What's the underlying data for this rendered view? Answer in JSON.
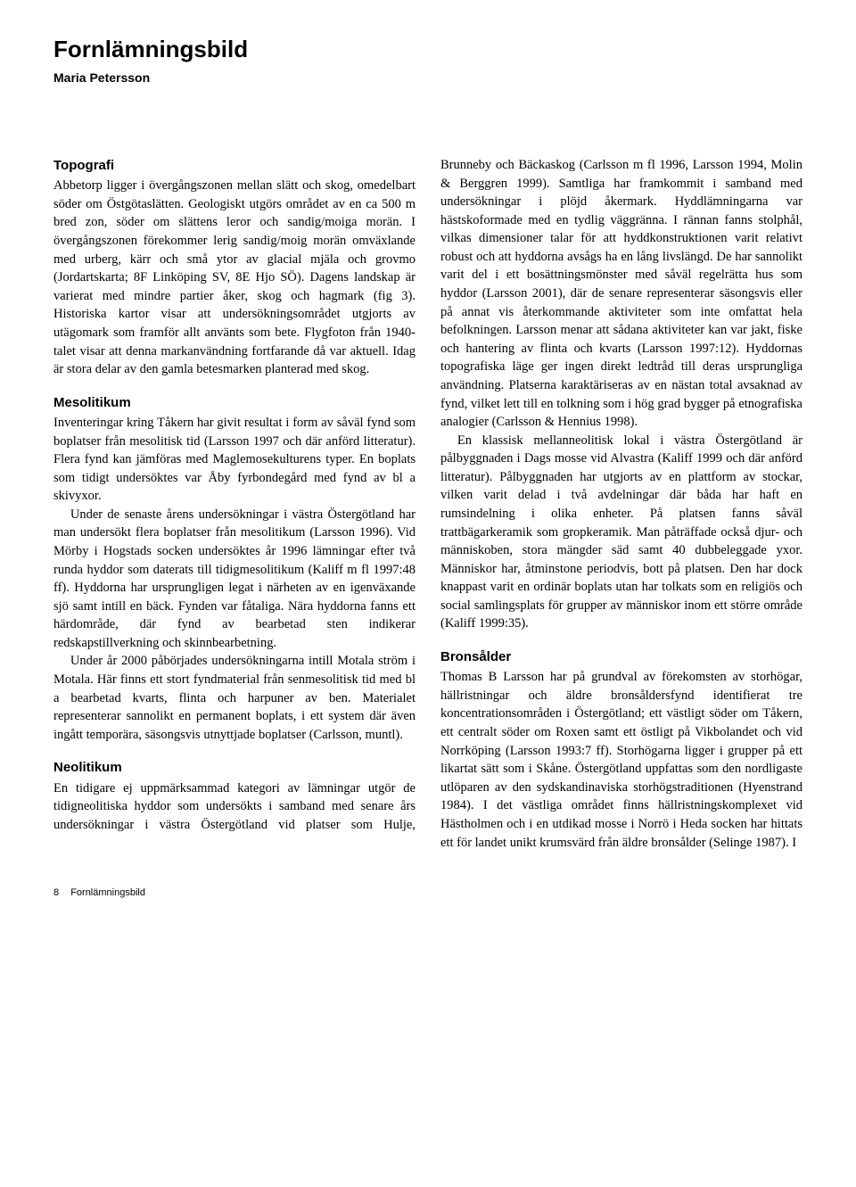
{
  "page": {
    "title": "Fornlämningsbild",
    "author": "Maria Petersson",
    "footer_page": "8",
    "footer_section": "Fornlämningsbild"
  },
  "sections": {
    "topografi": {
      "heading": "Topografi",
      "p1": "Abbetorp ligger i övergångszonen mellan slätt och skog, omedelbart söder om Östgötaslätten. Geologiskt utgörs området av en ca 500 m bred zon, söder om slättens leror och sandig/moiga morän. I övergångszonen förekommer lerig sandig/moig morän omväxlande med urberg, kärr och små ytor av glacial mjäla och grovmo (Jordartskarta; 8F Linköping SV, 8E Hjo SÖ). Dagens landskap är varierat med mindre partier åker, skog och hagmark (fig 3). Historiska kartor visar att undersökningsområdet utgjorts av utägomark som framför allt använts som bete. Flygfoton från 1940-talet visar att denna markanvändning fortfarande då var aktuell. Idag är stora delar av den gamla betesmarken planterad med skog."
    },
    "mesolitikum": {
      "heading": "Mesolitikum",
      "p1": "Inventeringar kring Tåkern har givit resultat i form av såväl fynd som boplatser från mesolitisk tid (Larsson 1997 och där anförd litteratur). Flera fynd kan jämföras med Maglemosekulturens typer. En boplats som tidigt undersöktes var Åby fyrbondegård med fynd av bl a skivyxor.",
      "p2": "Under de senaste årens undersökningar i västra Östergötland har man undersökt flera boplatser från mesolitikum (Larsson 1996). Vid Mörby i Hogstads socken undersöktes år 1996 lämningar efter två runda hyddor som daterats till tidigmesolitikum (Kaliff m fl 1997:48 ff). Hyddorna har ursprungligen legat i närheten av en igenväxande sjö samt intill en bäck. Fynden var fåtaliga. Nära hyddorna fanns ett härdområde, där fynd av bearbetad sten indikerar redskapstillverkning och skinnbearbetning.",
      "p3": "Under år 2000 påbörjades undersökningarna intill Motala ström i Motala. Här finns ett stort fyndmaterial från senmesolitisk tid med bl a bearbetad kvarts, flinta och harpuner av ben. Materialet representerar sannolikt en permanent boplats, i ett system där även ingått temporära, säsongsvis utnyttjade boplatser (Carlsson, muntl)."
    },
    "neolitikum": {
      "heading": "Neolitikum",
      "p1": "En tidigare ej uppmärksammad kategori av lämningar utgör de tidigneolitiska hyddor som undersökts i samband med senare års undersökningar i västra Östergötland vid platser som Hulje, Brunneby och Bäckaskog (Carlsson m fl 1996, Larsson 1994, Molin & Berggren 1999). Samtliga har framkommit i samband med undersökningar i plöjd åkermark. Hyddlämningarna var hästskoformade med en tydlig väggränna. I rännan fanns stolphål, vilkas dimensioner talar för att hyddkonstruktionen varit relativt robust och att hyddorna avsågs ha en lång livslängd. De har sannolikt varit del i ett bosättningsmönster med såväl regelrätta hus som hyddor (Larsson 2001), där de senare representerar säsongsvis eller på annat vis återkommande aktiviteter som inte omfattat hela befolkningen. Larsson menar att sådana aktiviteter kan var jakt, fiske och hantering av flinta och kvarts (Larsson 1997:12). Hyddornas topografiska läge ger ingen direkt ledtråd till deras ursprungliga användning. Platserna karaktäriseras av en nästan total avsaknad av fynd, vilket lett till en tolkning som i hög grad bygger på etnografiska analogier (Carlsson & Hennius 1998).",
      "p2": "En klassisk mellanneolitisk lokal i västra Östergötland är pålbyggnaden i Dags mosse vid Alvastra (Kaliff 1999 och där anförd litteratur). Pålbyggnaden har utgjorts av en plattform av stockar, vilken varit delad i två avdelningar där båda har haft en rumsindelning i olika enheter. På platsen fanns såväl trattbägarkeramik som gropkeramik. Man påträffade också djur- och människoben, stora mängder säd samt 40 dubbeleggade yxor. Människor har, åtminstone periodvis, bott på platsen. Den har dock knappast varit en ordinär boplats utan har tolkats som en religiös och social samlingsplats för grupper av människor inom ett större område (Kaliff 1999:35)."
    },
    "bronsalder": {
      "heading": "Bronsålder",
      "p1": "Thomas B Larsson har på grundval av förekomsten av storhögar, hällristningar och äldre bronsåldersfynd identifierat tre koncentrationsområden i Östergötland; ett västligt söder om Tåkern, ett centralt söder om Roxen samt ett östligt på Vikbolandet och vid Norrköping (Larsson 1993:7 ff). Storhögarna ligger i grupper på ett likartat sätt som i Skåne. Östergötland uppfattas som den nordligaste utlöparen av den sydskandinaviska storhögstraditionen (Hyenstrand 1984). I det västliga området finns hällristningskomplexet vid Hästholmen och i en utdikad mosse i Norrö i Heda socken har hittats ett för landet unikt krumsvärd från äldre bronsålder (Selinge 1987). I"
    }
  }
}
